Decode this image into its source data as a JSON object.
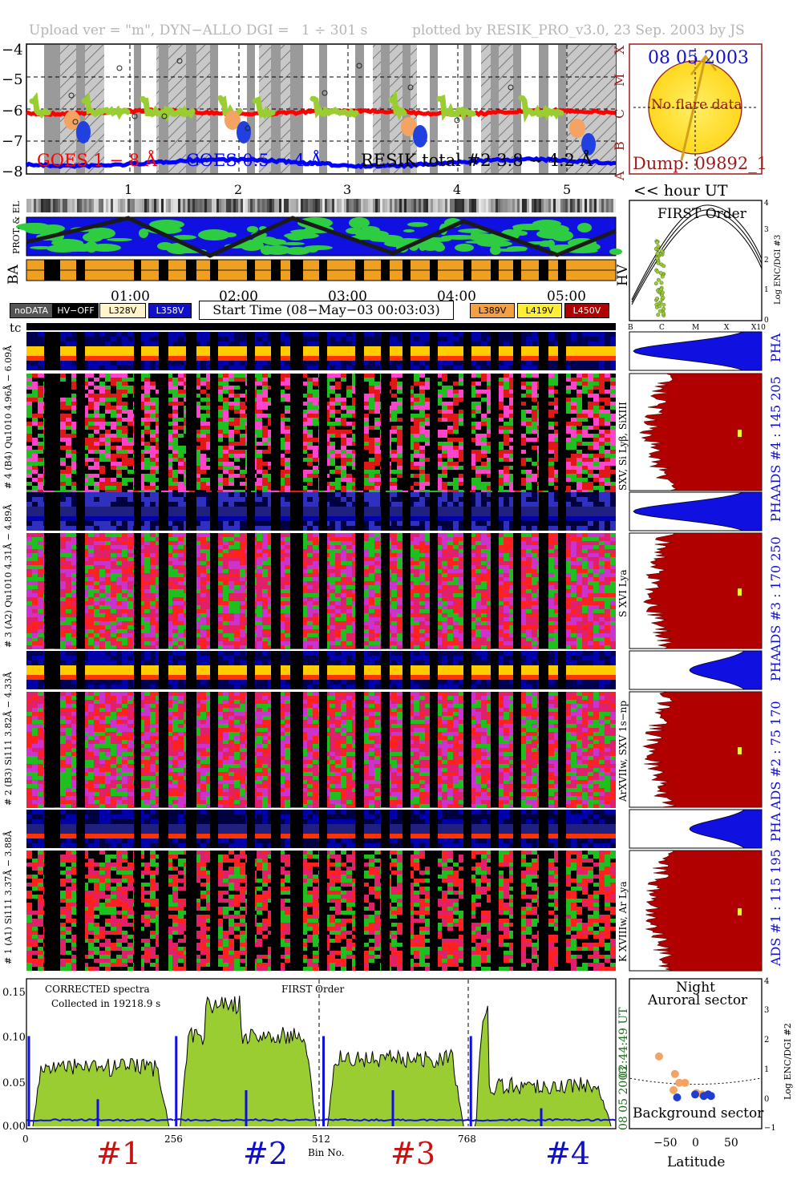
{
  "header": {
    "upload": "Upload ver = \"m\", DYN−ALLO DGI =",
    "range": "1 ÷ 301 s",
    "plotted": "plotted by RESIK_PRO_v3.0, 23 Sep. 2003 by JS"
  },
  "goes": {
    "y_ticks": [
      "−4",
      "−5",
      "−6",
      "−7",
      "−8"
    ],
    "class_labels": [
      "X",
      "M",
      "C",
      "B",
      "A"
    ],
    "legend_goes1": "GOES 1 − 8 Å",
    "legend_goes2": "GOES 0.5 − 4 Å",
    "legend_resik": "RESIK total #2  3.8 − 4.2 Å",
    "hour_ticks": [
      "1",
      "2",
      "3",
      "4",
      "5"
    ],
    "hour_label": "<< hour UT"
  },
  "sun": {
    "date": "08 05 2003",
    "flare": "No flare data",
    "dump": "Dump: 09892_1"
  },
  "orbit": {
    "prot_label": "PROT. & EL",
    "ba_label": "BA",
    "hv_label": "HV",
    "time_ticks": [
      "01:00",
      "02:00",
      "03:00",
      "04:00",
      "05:00"
    ]
  },
  "first_order": {
    "title": "FIRST Order",
    "ylabel": "Log ENC/DGI #3",
    "x_ticks": [
      "B",
      "C",
      "M",
      "X",
      "X10"
    ],
    "y_ticks": [
      "0",
      "1",
      "2",
      "3",
      "4"
    ]
  },
  "status_boxes": {
    "nodata": "noDATA",
    "hvoff": "HV−OFF",
    "l328": "L328V",
    "l358": "L358V",
    "l389": "L389V",
    "l419": "L419V",
    "l450": "L450V"
  },
  "start_time": "Start Time (08−May−03 00:03:03)",
  "tc_label": "tc",
  "channels": [
    {
      "pha_label": "# 4 (B4) Qu1010  4.96Å − 6.09Å",
      "spec_label": "SXV, Si Lyβ, SiXIII",
      "ads": "ADS #4 :   145 205"
    },
    {
      "pha_label": "# 3 (A2) Qu1010  4.31Å − 4.89Å",
      "spec_label": "S XVI Lya",
      "ads": "ADS #3 :   170 250"
    },
    {
      "pha_label": "# 2 (B3) Si111  3.82Å − 4.33Å",
      "spec_label": "ArXVIIw, SXV 1s−np",
      "ads": "ADS #2 :   75 170"
    },
    {
      "pha_label": "# 1 (A1) Si111  3.37Å − 3.88Å",
      "spec_label": "K XVIIIw, Ar Lya",
      "ads": "ADS #1 :   115 195"
    }
  ],
  "pha_short": "PHA",
  "spectrum": {
    "title1": "CORRECTED spectra",
    "title2": "Collected in 19218.9 s",
    "first_order": "FIRST Order",
    "y_ticks": [
      "0.15",
      "0.10",
      "0.05",
      "0.00"
    ],
    "x_ticks": [
      "0",
      "256",
      "512",
      "768"
    ],
    "xlabel": "Bin No.",
    "time_ut": "02:44:49 UT",
    "date": "08 05 2003",
    "ranges": [
      "#1",
      "#2",
      "#3",
      "#4"
    ]
  },
  "latitude": {
    "night": "Night",
    "auroral": "Auroral sector",
    "background": "Background sector",
    "xlabel": "Latitude",
    "ylabel": "Log ENC/DGI #2",
    "x_ticks": [
      "−50",
      "0",
      "50"
    ],
    "y_ticks": [
      "−1",
      "0",
      "1",
      "2",
      "3",
      "4"
    ]
  },
  "colors": {
    "goes_red": "#ff0000",
    "goes_blue": "#0000ff",
    "resik_green": "#9acd32",
    "sun_fill": "#ffe84a",
    "frame_red": "#9b1b1b",
    "dark_red": "#b00000",
    "orange": "#f4a460"
  },
  "chart_data": [
    {
      "type": "line",
      "title": "",
      "ylabel": "",
      "xlabel": "hour UT",
      "ylim": [
        -8,
        -4
      ],
      "series": [
        {
          "name": "GOES 1 − 8 Å",
          "values_approx": -6.1
        },
        {
          "name": "GOES 0.5 − 4 Å",
          "values_approx": -7.9
        },
        {
          "name": "RESIK total #2  3.8 − 4.2 Å",
          "values_approx": -6.0
        }
      ]
    },
    {
      "type": "area",
      "title": "CORRECTED spectra",
      "xlabel": "Bin No.",
      "xlim": [
        0,
        1024
      ],
      "ylim": [
        0,
        0.16
      ],
      "ranges": [
        {
          "name": "#1",
          "bins": [
            0,
            256
          ],
          "level": 0.065
        },
        {
          "name": "#2",
          "bins": [
            256,
            512
          ],
          "level": 0.1
        },
        {
          "name": "#3",
          "bins": [
            512,
            768
          ],
          "level": 0.075
        },
        {
          "name": "#4",
          "bins": [
            768,
            1024
          ],
          "level": 0.045
        }
      ]
    },
    {
      "type": "scatter",
      "xlabel": "Latitude",
      "ylabel": "Log ENC/DGI #2",
      "xlim": [
        -90,
        90
      ],
      "ylim": [
        -1,
        4
      ],
      "series": [
        {
          "color": "#f4a460",
          "x": [
            -50,
            -28,
            -22,
            -14,
            -30,
            2,
            10
          ],
          "y": [
            1.4,
            0.8,
            0.5,
            0.5,
            0.25,
            0.15,
            0.1
          ]
        },
        {
          "color": "#1f3fd0",
          "x": [
            -25,
            0,
            12,
            18,
            22
          ],
          "y": [
            0.0,
            0.1,
            0.05,
            0.1,
            0.05
          ]
        }
      ]
    }
  ]
}
